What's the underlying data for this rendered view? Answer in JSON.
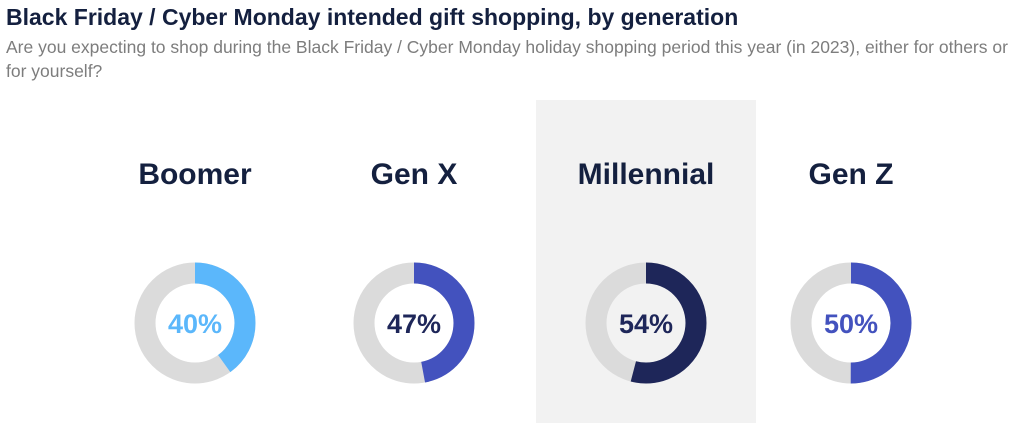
{
  "title": "Black Friday / Cyber Monday intended gift shopping, by generation",
  "subtitle": "Are you expecting to shop during the Black Friday / Cyber Monday holiday shopping period this year (in 2023), either for others or for yourself?",
  "colors": {
    "track": "#dbdbdb",
    "highlight_panel": "#f2f2f2",
    "title": "#14203f",
    "subtitle": "#7d7d7d"
  },
  "chart_data": {
    "type": "pie",
    "subtype": "donut",
    "title": "Black Friday / Cyber Monday intended gift shopping, by generation",
    "categories": [
      "Boomer",
      "Gen X",
      "Millennial",
      "Gen Z"
    ],
    "values": [
      40,
      47,
      54,
      50
    ],
    "value_labels": [
      "40%",
      "47%",
      "54%",
      "50%"
    ],
    "unit": "%",
    "highlighted_category": "Millennial",
    "series_colors": [
      "#5bb7fb",
      "#4352be",
      "#1e2659",
      "#4352be"
    ],
    "label_colors": [
      "#5bb7fb",
      "#1e2659",
      "#1e2659",
      "#4352be"
    ]
  }
}
